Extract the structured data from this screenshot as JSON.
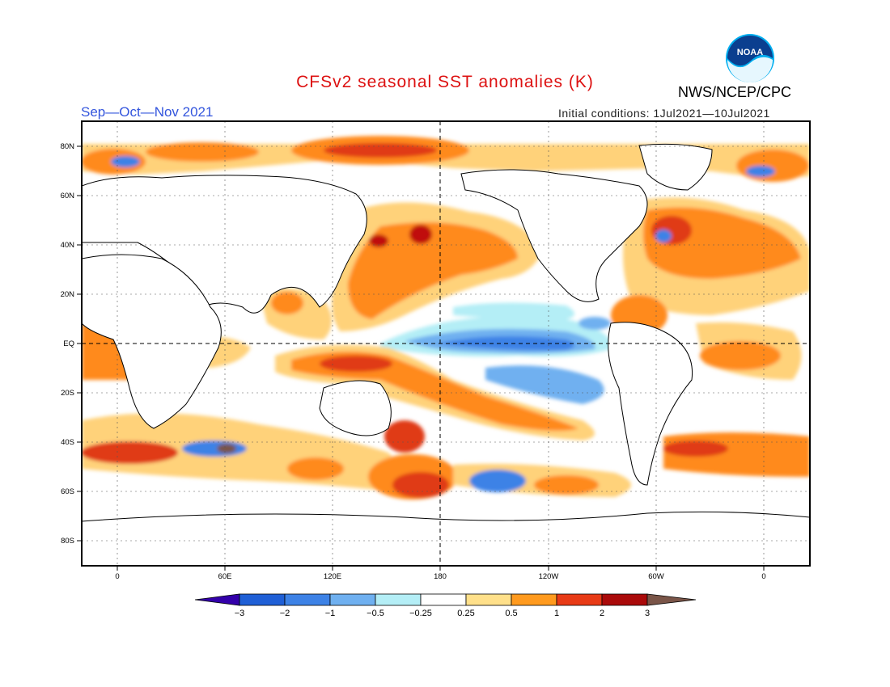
{
  "header": {
    "title": "CFSv2 seasonal SST anomalies (K)",
    "season": "Sep—Oct—Nov 2021",
    "initial_conditions": "Initial conditions: 1Jul2021—10Jul2021",
    "organization": "NWS/NCEP/CPC",
    "logo_text": "NOAA"
  },
  "map": {
    "lat_labels": [
      "80N",
      "60N",
      "40N",
      "20N",
      "EQ",
      "20S",
      "40S",
      "60S",
      "80S"
    ],
    "lon_labels": [
      "0",
      "60E",
      "120E",
      "180",
      "120W",
      "60W",
      "0"
    ]
  },
  "colorbar": {
    "levels": [
      "−3",
      "−2",
      "−1",
      "−0.5",
      "−0.25",
      "0.25",
      "0.5",
      "1",
      "2",
      "3"
    ],
    "colors": [
      "#3300aa",
      "#1f5fd6",
      "#3d82e6",
      "#6fb0f0",
      "#b4eef6",
      "#ffffff",
      "#ffe08a",
      "#ff9a1e",
      "#e83a16",
      "#c01010",
      "#aa0a0a",
      "#7a5548"
    ]
  }
}
